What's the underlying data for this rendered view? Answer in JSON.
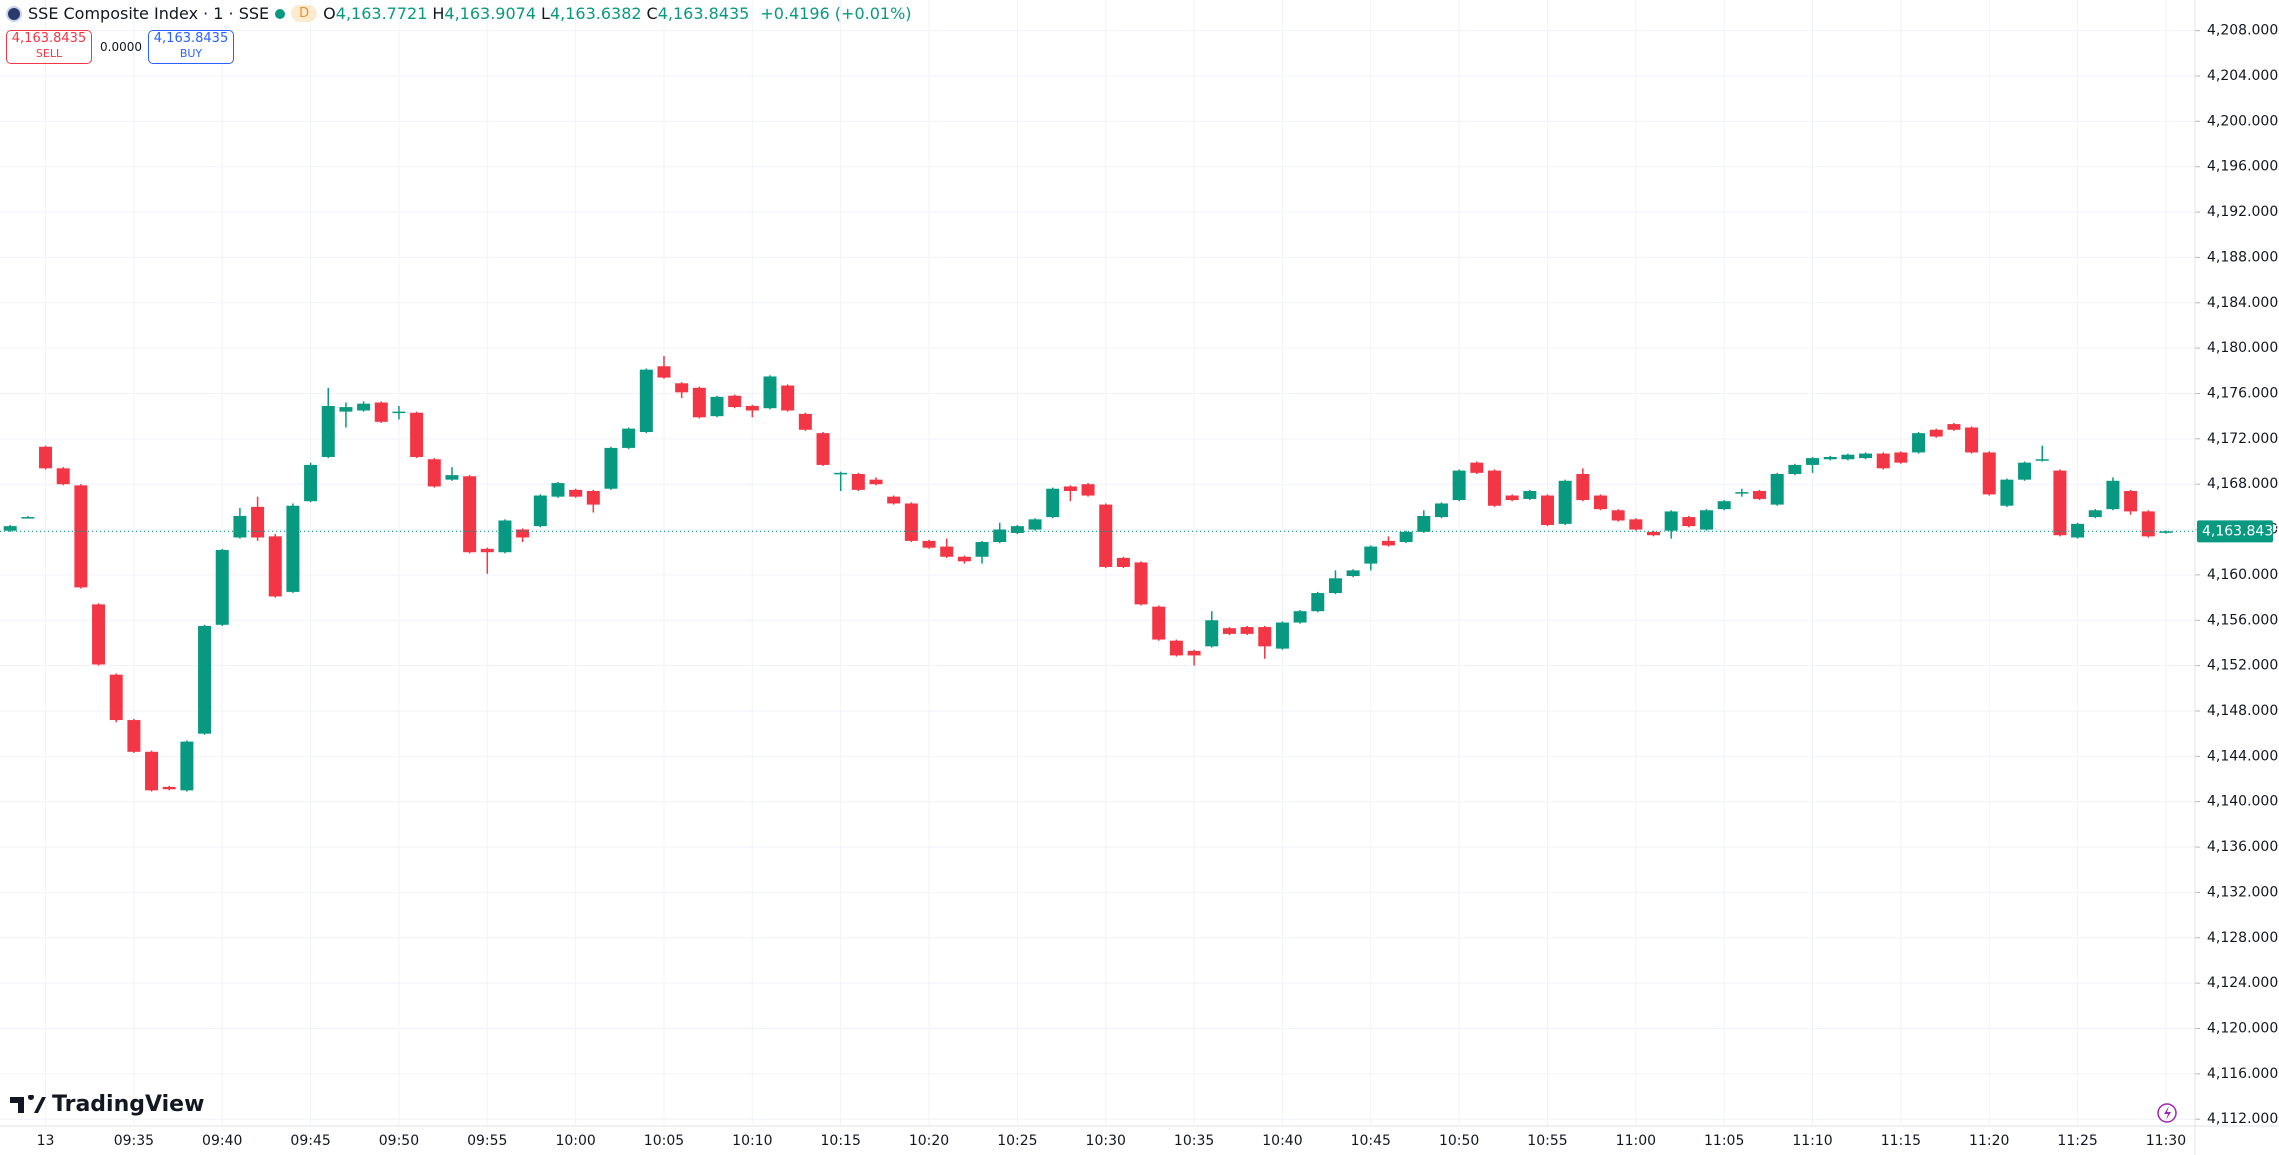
{
  "header": {
    "symbol": "SSE Composite Index · 1 · SSE",
    "interval_badge": "D",
    "ohlc": [
      {
        "label": "O",
        "value": "4,163.7721"
      },
      {
        "label": "H",
        "value": "4,163.9074"
      },
      {
        "label": "L",
        "value": "4,163.6382"
      },
      {
        "label": "C",
        "value": "4,163.8435"
      }
    ],
    "change": "+0.4196 (+0.01%)"
  },
  "trade": {
    "sell_price": "4,163.8435",
    "sell_label": "SELL",
    "spread": "0.0000",
    "buy_price": "4,163.8435",
    "buy_label": "BUY"
  },
  "branding": "TradingView",
  "chart_data": {
    "type": "candlestick",
    "up_color": "#089981",
    "down_color": "#f23645",
    "grid": true,
    "categories": [
      null,
      null,
      "13",
      null,
      null,
      null,
      null,
      "09:35",
      null,
      null,
      null,
      null,
      "09:40",
      null,
      null,
      null,
      null,
      "09:45",
      null,
      null,
      null,
      null,
      "09:50",
      null,
      null,
      null,
      null,
      "09:55",
      null,
      null,
      null,
      null,
      "10:00",
      null,
      null,
      null,
      null,
      "10:05",
      null,
      null,
      null,
      null,
      "10:10",
      null,
      null,
      null,
      null,
      "10:15",
      null,
      null,
      null,
      null,
      "10:20",
      null,
      null,
      null,
      null,
      "10:25",
      null,
      null,
      null,
      null,
      "10:30",
      null,
      null,
      null,
      null,
      "10:35",
      null,
      null,
      null,
      null,
      "10:40",
      null,
      null,
      null,
      null,
      "10:45",
      null,
      null,
      null,
      null,
      "10:50",
      null,
      null,
      null,
      null,
      "10:55",
      null,
      null,
      null,
      null,
      "11:00",
      null,
      null,
      null,
      null,
      "11:05",
      null,
      null,
      null,
      null,
      "11:10",
      null,
      null,
      null,
      null,
      "11:15",
      null,
      null,
      null,
      null,
      "11:20",
      null,
      null,
      null,
      null,
      "11:25",
      null,
      null,
      null,
      null,
      "11:30"
    ],
    "open": [
      4163.9,
      4165.1,
      4171.3,
      4169.4,
      4167.9,
      4157.4,
      4151.2,
      4147.2,
      4144.4,
      4141.3,
      4141.0,
      4146.0,
      4155.6,
      4163.3,
      4166.0,
      4163.4,
      4158.5,
      4166.5,
      4170.4,
      4174.4,
      4174.5,
      4175.2,
      4174.3,
      4174.3,
      4170.2,
      4168.4,
      4168.7,
      4162.3,
      4162.0,
      4164.0,
      4164.3,
      4166.9,
      4167.5,
      4167.4,
      4167.6,
      4171.2,
      4172.6,
      4178.4,
      4176.9,
      4176.5,
      4174.0,
      4175.8,
      4174.9,
      4174.7,
      4176.7,
      4174.2,
      4172.5,
      4168.9,
      4168.9,
      4168.4,
      4166.9,
      4166.3,
      4163.0,
      4162.5,
      4161.6,
      4161.6,
      4162.9,
      4163.7,
      4164.0,
      4165.1,
      4167.8,
      4168.0,
      4166.2,
      4161.5,
      4161.1,
      4157.2,
      4154.2,
      4153.3,
      4153.7,
      4155.3,
      4155.4,
      4155.4,
      4153.5,
      4155.8,
      4156.8,
      4158.4,
      4159.9,
      4161.0,
      4163.0,
      4162.9,
      4163.8,
      4165.1,
      4166.6,
      4169.9,
      4169.2,
      4167.0,
      4166.7,
      4167.0,
      4164.5,
      4168.9,
      4167.0,
      4165.7,
      4164.9,
      4163.8,
      4163.9,
      4165.1,
      4164.0,
      4165.8,
      4167.2,
      4167.4,
      4166.2,
      4168.9,
      4169.7,
      4170.2,
      4170.2,
      4170.3,
      4170.7,
      4170.8,
      4170.8,
      4172.8,
      4173.3,
      4173.0,
      4170.8,
      4166.1,
      4168.4,
      4170.1,
      4169.2,
      4163.3,
      4165.1,
      4165.8,
      4167.4,
      4165.6,
      4163.7721
    ],
    "high": [
      4164.4,
      4165.2,
      4171.4,
      4169.5,
      4168.0,
      4157.5,
      4151.3,
      4147.3,
      4144.5,
      4141.4,
      4145.4,
      4155.6,
      4162.3,
      4165.9,
      4166.9,
      4163.6,
      4166.3,
      4169.9,
      4176.5,
      4175.2,
      4175.3,
      4175.3,
      4174.9,
      4174.4,
      4170.3,
      4169.5,
      4168.8,
      4162.4,
      4164.9,
      4164.1,
      4167.1,
      4168.2,
      4167.6,
      4167.5,
      4171.3,
      4173.0,
      4178.2,
      4179.3,
      4177.0,
      4176.6,
      4175.8,
      4175.9,
      4175.0,
      4177.6,
      4176.8,
      4174.3,
      4172.6,
      4169.1,
      4169.0,
      4168.6,
      4167.0,
      4166.4,
      4163.1,
      4163.2,
      4161.7,
      4163.0,
      4164.6,
      4164.4,
      4165.0,
      4167.7,
      4167.9,
      4168.1,
      4166.3,
      4161.6,
      4161.2,
      4157.3,
      4154.3,
      4153.4,
      4156.8,
      4155.4,
      4155.5,
      4155.5,
      4155.9,
      4156.9,
      4158.5,
      4160.4,
      4160.5,
      4162.6,
      4163.4,
      4163.9,
      4165.7,
      4166.4,
      4169.3,
      4170.0,
      4169.3,
      4167.1,
      4167.5,
      4167.1,
      4168.4,
      4169.4,
      4167.1,
      4165.8,
      4165.0,
      4163.9,
      4165.7,
      4165.2,
      4165.8,
      4166.6,
      4167.6,
      4167.5,
      4169.0,
      4169.8,
      4170.4,
      4170.5,
      4170.7,
      4170.8,
      4170.8,
      4170.9,
      4172.6,
      4172.9,
      4173.4,
      4173.1,
      4170.9,
      4168.5,
      4170.0,
      4171.4,
      4169.3,
      4164.6,
      4165.8,
      4168.6,
      4167.5,
      4165.7,
      4163.9074
    ],
    "low": [
      4163.8,
      4165.0,
      4169.3,
      4167.9,
      4158.8,
      4152.0,
      4147.0,
      4144.3,
      4140.9,
      4141.0,
      4140.9,
      4145.9,
      4155.5,
      4163.2,
      4163.0,
      4158.0,
      4158.4,
      4166.4,
      4170.3,
      4173.0,
      4174.4,
      4173.4,
      4173.7,
      4170.3,
      4167.7,
      4168.3,
      4161.9,
      4160.1,
      4161.9,
      4162.9,
      4164.2,
      4166.8,
      4166.8,
      4165.5,
      4167.5,
      4171.1,
      4172.5,
      4177.3,
      4175.6,
      4173.8,
      4173.9,
      4174.7,
      4173.9,
      4174.6,
      4174.4,
      4172.7,
      4169.6,
      4167.4,
      4167.4,
      4167.9,
      4166.2,
      4162.9,
      4162.3,
      4161.5,
      4161.0,
      4161.0,
      4162.8,
      4163.6,
      4163.9,
      4165.0,
      4166.5,
      4166.9,
      4160.6,
      4160.6,
      4157.3,
      4154.2,
      4152.8,
      4152.0,
      4153.6,
      4154.7,
      4154.7,
      4152.6,
      4153.4,
      4155.7,
      4156.7,
      4158.3,
      4159.8,
      4160.4,
      4162.5,
      4162.8,
      4163.7,
      4165.0,
      4166.5,
      4168.9,
      4166.0,
      4166.5,
      4166.6,
      4164.3,
      4164.4,
      4166.5,
      4165.7,
      4164.7,
      4163.9,
      4163.4,
      4163.2,
      4164.2,
      4163.9,
      4165.7,
      4166.9,
      4166.6,
      4166.1,
      4168.8,
      4169.0,
      4170.1,
      4170.1,
      4170.2,
      4169.3,
      4169.8,
      4170.7,
      4172.1,
      4172.7,
      4170.7,
      4167.0,
      4166.0,
      4168.3,
      4170.0,
      4163.4,
      4163.2,
      4165.0,
      4165.7,
      4165.3,
      4163.3,
      4163.6382
    ],
    "close": [
      4164.3,
      4165.1,
      4169.4,
      4168.0,
      4158.9,
      4152.1,
      4147.2,
      4144.4,
      4141.0,
      4141.1,
      4145.3,
      4155.5,
      4162.2,
      4165.2,
      4163.3,
      4158.1,
      4166.1,
      4169.7,
      4174.9,
      4174.8,
      4175.1,
      4173.5,
      4174.4,
      4170.4,
      4167.8,
      4168.8,
      4162.0,
      4162.0,
      4164.8,
      4163.3,
      4167.0,
      4168.1,
      4166.9,
      4166.2,
      4171.2,
      4172.9,
      4178.1,
      4177.4,
      4176.1,
      4173.9,
      4175.7,
      4174.8,
      4174.5,
      4177.5,
      4174.5,
      4172.8,
      4169.7,
      4169.0,
      4167.5,
      4168.0,
      4166.3,
      4163.0,
      4162.4,
      4161.6,
      4161.2,
      4162.9,
      4164.0,
      4164.3,
      4164.9,
      4167.6,
      4167.4,
      4167.0,
      4160.7,
      4160.7,
      4157.4,
      4154.3,
      4152.9,
      4152.9,
      4156.0,
      4154.8,
      4154.8,
      4153.7,
      4155.8,
      4156.8,
      4158.4,
      4159.7,
      4160.4,
      4162.5,
      4162.6,
      4163.8,
      4165.2,
      4166.3,
      4169.2,
      4169.0,
      4166.1,
      4166.6,
      4167.4,
      4164.4,
      4168.3,
      4166.6,
      4165.8,
      4164.8,
      4164.0,
      4163.5,
      4165.6,
      4164.3,
      4165.7,
      4166.5,
      4167.3,
      4166.7,
      4168.9,
      4169.7,
      4170.3,
      4170.4,
      4170.6,
      4170.7,
      4169.4,
      4169.9,
      4172.5,
      4172.2,
      4172.8,
      4170.8,
      4167.1,
      4168.4,
      4169.9,
      4170.2,
      4163.5,
      4164.5,
      4165.7,
      4168.3,
      4165.6,
      4163.4,
      4163.8435
    ],
    "ylim": [
      4111.4,
      4210.7
    ],
    "yticks": [
      {
        "value": 4112,
        "label": "4,112.0000"
      },
      {
        "value": 4116,
        "label": "4,116.0000"
      },
      {
        "value": 4120,
        "label": "4,120.0000"
      },
      {
        "value": 4124,
        "label": "4,124.0000"
      },
      {
        "value": 4128,
        "label": "4,128.0000"
      },
      {
        "value": 4132,
        "label": "4,132.0000"
      },
      {
        "value": 4136,
        "label": "4,136.0000"
      },
      {
        "value": 4140,
        "label": "4,140.0000"
      },
      {
        "value": 4144,
        "label": "4,144.0000"
      },
      {
        "value": 4148,
        "label": "4,148.0000"
      },
      {
        "value": 4152,
        "label": "4,152.0000"
      },
      {
        "value": 4156,
        "label": "4,156.0000"
      },
      {
        "value": 4160,
        "label": "4,160.0000"
      },
      {
        "value": 4164,
        "label": "4,164.0000"
      },
      {
        "value": 4168,
        "label": "4,168.0000"
      },
      {
        "value": 4172,
        "label": "4,172.0000"
      },
      {
        "value": 4176,
        "label": "4,176.0000"
      },
      {
        "value": 4180,
        "label": "4,180.0000"
      },
      {
        "value": 4184,
        "label": "4,184.0000"
      },
      {
        "value": 4188,
        "label": "4,188.0000"
      },
      {
        "value": 4192,
        "label": "4,192.0000"
      },
      {
        "value": 4196,
        "label": "4,196.0000"
      },
      {
        "value": 4200,
        "label": "4,200.0000"
      },
      {
        "value": 4204,
        "label": "4,204.0000"
      },
      {
        "value": 4208,
        "label": "4,208.0000"
      }
    ],
    "last_price": {
      "value": 4163.8435,
      "label": "4,163.8435"
    }
  }
}
